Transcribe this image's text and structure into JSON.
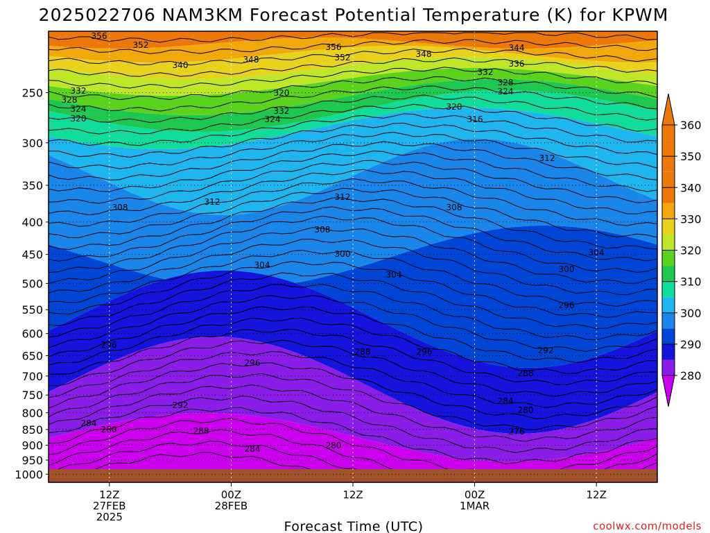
{
  "title": "2025022706 NAM3KM Forecast Potential Temperature (K) for KPWM",
  "credit": "coolwx.com/models",
  "chart_data": {
    "type": "contour-fill",
    "title": "2025022706 NAM3KM Forecast Potential Temperature (K) for KPWM",
    "xlabel": "Forecast Time (UTC)",
    "ylabel": "",
    "y_scale": "log-pressure",
    "y_ticks_hpa": [
      250,
      300,
      350,
      400,
      450,
      500,
      550,
      600,
      650,
      700,
      750,
      800,
      850,
      900,
      950,
      1000
    ],
    "ylim_hpa": [
      200,
      1030
    ],
    "xlim_hours": [
      0,
      60
    ],
    "x_ticks": [
      {
        "hour": 6,
        "lines": [
          "12Z",
          "27FEB",
          "2025"
        ]
      },
      {
        "hour": 18,
        "lines": [
          "00Z",
          "28FEB"
        ]
      },
      {
        "hour": 30,
        "lines": [
          "12Z"
        ]
      },
      {
        "hour": 42,
        "lines": [
          "00Z",
          "1MAR"
        ]
      },
      {
        "hour": 54,
        "lines": [
          "12Z"
        ]
      }
    ],
    "colorbar": {
      "levels": [
        280,
        290,
        300,
        310,
        320,
        330,
        340,
        350,
        360
      ],
      "tick_labels": [
        "280",
        "290",
        "300",
        "310",
        "320",
        "330",
        "340",
        "350",
        "360"
      ],
      "band_colors": [
        "#cc00ee",
        "#8a1ee8",
        "#1414dc",
        "#0046d6",
        "#1a86ea",
        "#1fb6f0",
        "#12dc9c",
        "#1ec850",
        "#5ad21e",
        "#c0e62a",
        "#e8d21e",
        "#f0a80a",
        "#ec780a"
      ]
    },
    "isentrope_interval_K": 2,
    "isentrope_labels": [
      "356",
      "352",
      "340",
      "348",
      "356",
      "352",
      "348",
      "344",
      "336",
      "332",
      "328",
      "324",
      "332",
      "328",
      "324",
      "320",
      "332",
      "324",
      "320",
      "320",
      "316",
      "312",
      "312",
      "312",
      "308",
      "308",
      "308",
      "304",
      "304",
      "304",
      "300",
      "300",
      "296",
      "296",
      "296",
      "296",
      "292",
      "292",
      "288",
      "288",
      "288",
      "284",
      "284",
      "284",
      "280",
      "280",
      "280",
      "276"
    ],
    "surface_color": "#a0522d",
    "grid": "dotted"
  }
}
